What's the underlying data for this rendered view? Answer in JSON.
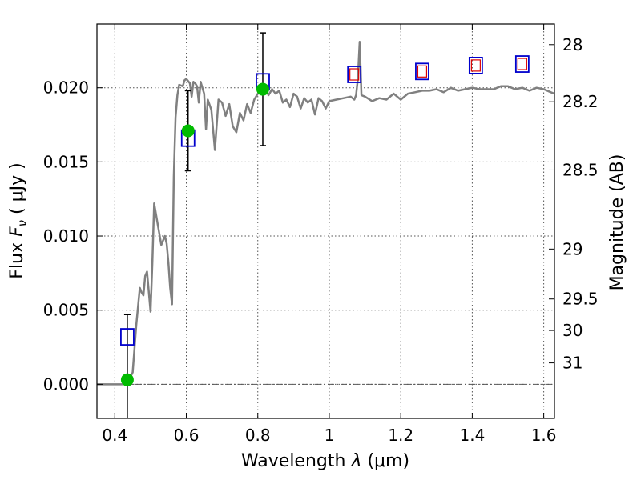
{
  "chart_data": {
    "type": "line",
    "xlabel_prefix": "Wavelength  ",
    "xlabel_symbol": "λ",
    "xlabel_unit": " (μm)",
    "ylabel_prefix": "Flux  ",
    "ylabel_symbol": "F",
    "ylabel_subscript": "ν",
    "ylabel_unit": "  ( μJy )",
    "y2label": "Magnitude (AB)",
    "xlim": [
      0.35,
      1.63
    ],
    "ylim": [
      -0.0023,
      0.0243
    ],
    "grid": true,
    "x_ticks": [
      0.4,
      0.6,
      0.8,
      1.0,
      1.2,
      1.4,
      1.6
    ],
    "x_tick_labels": [
      "0.4",
      "0.6",
      "0.8",
      "1",
      "1.2",
      "1.4",
      "1.6"
    ],
    "y_ticks": [
      0.0,
      0.005,
      0.01,
      0.015,
      0.02
    ],
    "y_tick_labels": [
      "0.000",
      "0.005",
      "0.010",
      "0.015",
      "0.020"
    ],
    "y2_tick_labels": [
      "28",
      "28.2",
      "28.5",
      "29",
      "29.5",
      "30",
      "31"
    ],
    "y2_tick_values": [
      28.0,
      28.2,
      28.5,
      29.0,
      29.5,
      30.0,
      31.0
    ],
    "zero_line": 0.0,
    "colors": {
      "sed": "#808080",
      "photometry": "#00bb00",
      "errorbar": "#000000",
      "model_box": "#0000cc",
      "model_box_inner": "#dd0000",
      "grid": "#555555"
    },
    "series": [
      {
        "name": "model-sed",
        "style": "line",
        "x": [
          0.35,
          0.4,
          0.42,
          0.43,
          0.44,
          0.45,
          0.46,
          0.47,
          0.475,
          0.48,
          0.485,
          0.49,
          0.5,
          0.505,
          0.51,
          0.52,
          0.53,
          0.54,
          0.545,
          0.55,
          0.555,
          0.56,
          0.565,
          0.57,
          0.575,
          0.58,
          0.59,
          0.595,
          0.6,
          0.61,
          0.615,
          0.62,
          0.625,
          0.63,
          0.635,
          0.64,
          0.65,
          0.655,
          0.66,
          0.67,
          0.68,
          0.69,
          0.7,
          0.71,
          0.72,
          0.73,
          0.74,
          0.75,
          0.76,
          0.77,
          0.78,
          0.79,
          0.8,
          0.81,
          0.82,
          0.83,
          0.84,
          0.85,
          0.86,
          0.87,
          0.88,
          0.89,
          0.9,
          0.91,
          0.92,
          0.93,
          0.94,
          0.95,
          0.96,
          0.97,
          0.98,
          0.99,
          1.0,
          1.02,
          1.04,
          1.06,
          1.07,
          1.075,
          1.08,
          1.085,
          1.09,
          1.1,
          1.12,
          1.14,
          1.16,
          1.18,
          1.2,
          1.22,
          1.24,
          1.26,
          1.28,
          1.3,
          1.32,
          1.34,
          1.36,
          1.38,
          1.4,
          1.42,
          1.44,
          1.46,
          1.48,
          1.5,
          1.52,
          1.54,
          1.56,
          1.58,
          1.6,
          1.62,
          1.63
        ],
        "y": [
          0.0,
          0.0,
          0.0,
          0.00015,
          0.0003,
          0.0008,
          0.004,
          0.0065,
          0.0062,
          0.006,
          0.0073,
          0.0076,
          0.0049,
          0.0081,
          0.0122,
          0.0108,
          0.0094,
          0.01,
          0.0095,
          0.0082,
          0.0065,
          0.0054,
          0.014,
          0.018,
          0.0195,
          0.0202,
          0.0201,
          0.0205,
          0.0206,
          0.0203,
          0.0194,
          0.0204,
          0.0203,
          0.0201,
          0.019,
          0.0204,
          0.0196,
          0.0172,
          0.0192,
          0.0185,
          0.0158,
          0.0192,
          0.019,
          0.0181,
          0.0189,
          0.0174,
          0.017,
          0.0183,
          0.0178,
          0.0189,
          0.0183,
          0.0192,
          0.0196,
          0.0197,
          0.0201,
          0.0195,
          0.0199,
          0.0196,
          0.0198,
          0.019,
          0.0192,
          0.0187,
          0.0196,
          0.0194,
          0.0186,
          0.0193,
          0.019,
          0.0192,
          0.0182,
          0.0193,
          0.0191,
          0.0186,
          0.0191,
          0.0192,
          0.0193,
          0.0194,
          0.0192,
          0.0195,
          0.0206,
          0.0231,
          0.0195,
          0.0194,
          0.0191,
          0.0193,
          0.0192,
          0.0196,
          0.0192,
          0.0196,
          0.0197,
          0.0198,
          0.0198,
          0.0199,
          0.0197,
          0.02,
          0.0198,
          0.0199,
          0.02,
          0.0199,
          0.0199,
          0.0199,
          0.0201,
          0.0201,
          0.0199,
          0.02,
          0.0198,
          0.02,
          0.0199,
          0.0197,
          0.0196
        ]
      },
      {
        "name": "observed-photometry",
        "style": "points",
        "x": [
          0.435,
          0.605,
          0.814
        ],
        "y": [
          0.0003,
          0.0171,
          0.0199
        ],
        "yerr_lo": [
          0.0026,
          0.0027,
          0.0038
        ],
        "yerr_hi": [
          0.0044,
          0.0027,
          0.0038
        ]
      },
      {
        "name": "model-band-flux",
        "style": "boxes",
        "x": [
          0.435,
          0.605,
          0.814,
          1.07,
          1.26,
          1.41,
          1.54
        ],
        "y": [
          0.0032,
          0.0166,
          0.0204,
          0.0209,
          0.0211,
          0.0215,
          0.0216
        ],
        "inner_red": [
          false,
          false,
          false,
          true,
          true,
          true,
          true
        ]
      }
    ]
  }
}
